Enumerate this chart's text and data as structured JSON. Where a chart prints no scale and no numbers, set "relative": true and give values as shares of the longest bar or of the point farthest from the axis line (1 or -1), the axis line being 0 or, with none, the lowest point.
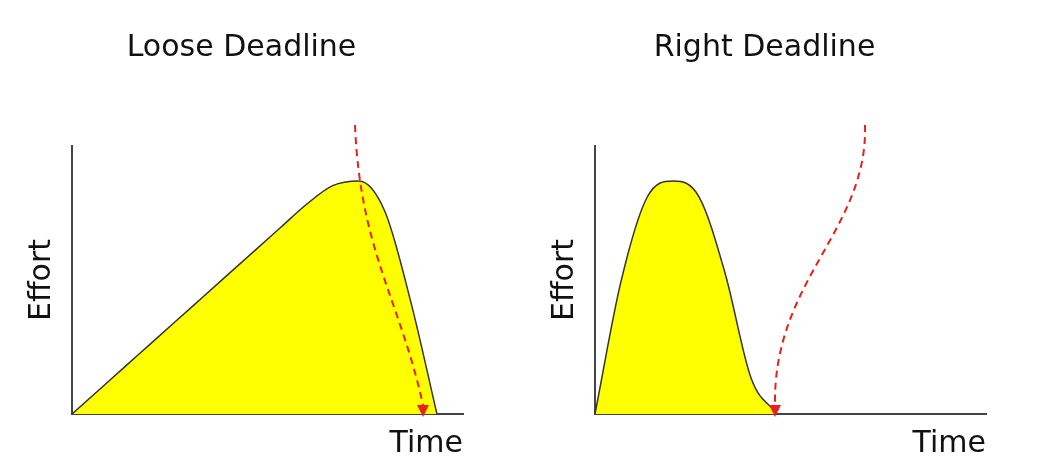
{
  "chart_data": [
    {
      "type": "area",
      "title": "Loose Deadline",
      "xlabel": "Time",
      "ylabel": "Effort",
      "relative": true,
      "categories": [
        null,
        null,
        null,
        null,
        null,
        null,
        null,
        null,
        null,
        null,
        null,
        null,
        null,
        null,
        null,
        null
      ],
      "series": [
        {
          "color": "#ffff00",
          "values": [
            0,
            0.1,
            0.2,
            0.3,
            0.4,
            0.5,
            0.6,
            0.7,
            0.8,
            0.9,
            0.98,
            1,
            0.87,
            0.48,
            0,
            null
          ]
        }
      ]
    },
    {
      "type": "area",
      "title": "Right Deadline",
      "xlabel": "Time",
      "ylabel": "Effort",
      "relative": true,
      "categories": [
        null,
        null,
        null,
        null,
        null,
        null,
        null,
        null,
        null,
        null,
        null,
        null,
        null,
        null,
        null,
        null
      ],
      "series": [
        {
          "color": "#ffff00",
          "values": [
            0,
            0.57,
            0.93,
            1,
            0.93,
            0.6,
            0.15,
            0,
            null,
            null,
            null,
            null,
            null,
            null,
            null,
            null
          ]
        }
      ]
    }
  ]
}
